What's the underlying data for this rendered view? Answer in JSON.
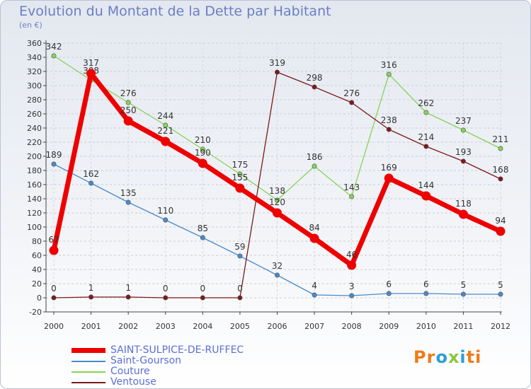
{
  "chart_data": {
    "type": "line",
    "title": "Evolution du Montant de la Dette par Habitant",
    "ylabel": "(en €)",
    "x": [
      "2000",
      "2001",
      "2002",
      "2003",
      "2004",
      "2005",
      "2006",
      "2007",
      "2008",
      "2009",
      "2010",
      "2011",
      "2012"
    ],
    "ylim": [
      -20,
      360
    ],
    "yticks": [
      -20,
      0,
      20,
      40,
      60,
      80,
      100,
      120,
      140,
      160,
      180,
      200,
      220,
      240,
      260,
      280,
      300,
      320,
      340,
      360
    ],
    "series": [
      {
        "name": "Saint-Gourson",
        "color": "#4a8ac9",
        "values": [
          189,
          162,
          135,
          110,
          85,
          59,
          32,
          4,
          3,
          6,
          6,
          5,
          5
        ],
        "labels": [
          "189",
          "162",
          "135",
          "110",
          "85",
          "59",
          "32",
          "4",
          "3",
          "6",
          "6",
          "5",
          "5"
        ]
      },
      {
        "name": "Couture",
        "color": "#86d25a",
        "values": [
          342,
          308,
          276,
          244,
          210,
          175,
          138,
          186,
          143,
          316,
          262,
          237,
          211
        ],
        "labels": [
          "342",
          "308",
          "276",
          "244",
          "210",
          "175",
          "138",
          "186",
          "143",
          "316",
          "262",
          "237",
          "211"
        ]
      },
      {
        "name": "Ventouse",
        "color": "#7a1a1a",
        "values": [
          0,
          1,
          1,
          0,
          0,
          0,
          319,
          298,
          276,
          238,
          214,
          193,
          168
        ],
        "labels": [
          "0",
          "1",
          "1",
          "0",
          "0",
          "0",
          "319",
          "298",
          "276",
          "238",
          "214",
          "193",
          "168"
        ]
      },
      {
        "name": "SAINT-SULPICE-DE-RUFFEC",
        "color": "#ee0000",
        "values": [
          67,
          317,
          250,
          221,
          190,
          155,
          120,
          84,
          46,
          169,
          144,
          118,
          94
        ],
        "labels": [
          "67",
          "317",
          "250",
          "221",
          "190",
          "155",
          "120",
          "84",
          "46",
          "169",
          "144",
          "118",
          "94"
        ]
      }
    ]
  },
  "legend": {
    "items": [
      {
        "label": "SAINT-SULPICE-DE-RUFFEC",
        "color": "#ee0000",
        "weight": 7
      },
      {
        "label": "Saint-Gourson",
        "color": "#4a8ac9",
        "weight": 2
      },
      {
        "label": "Couture",
        "color": "#86d25a",
        "weight": 2
      },
      {
        "label": "Ventouse",
        "color": "#7a1a1a",
        "weight": 2
      }
    ]
  },
  "logo": {
    "text": "Proxiti",
    "letters": [
      "P",
      "r",
      "o",
      "x",
      "i",
      "t",
      "i"
    ],
    "colors": [
      "#f07b17",
      "#f07b17",
      "#2a9fd8",
      "#8cc63f",
      "#2a9fd8",
      "#f07b17",
      "#f07b17"
    ]
  }
}
